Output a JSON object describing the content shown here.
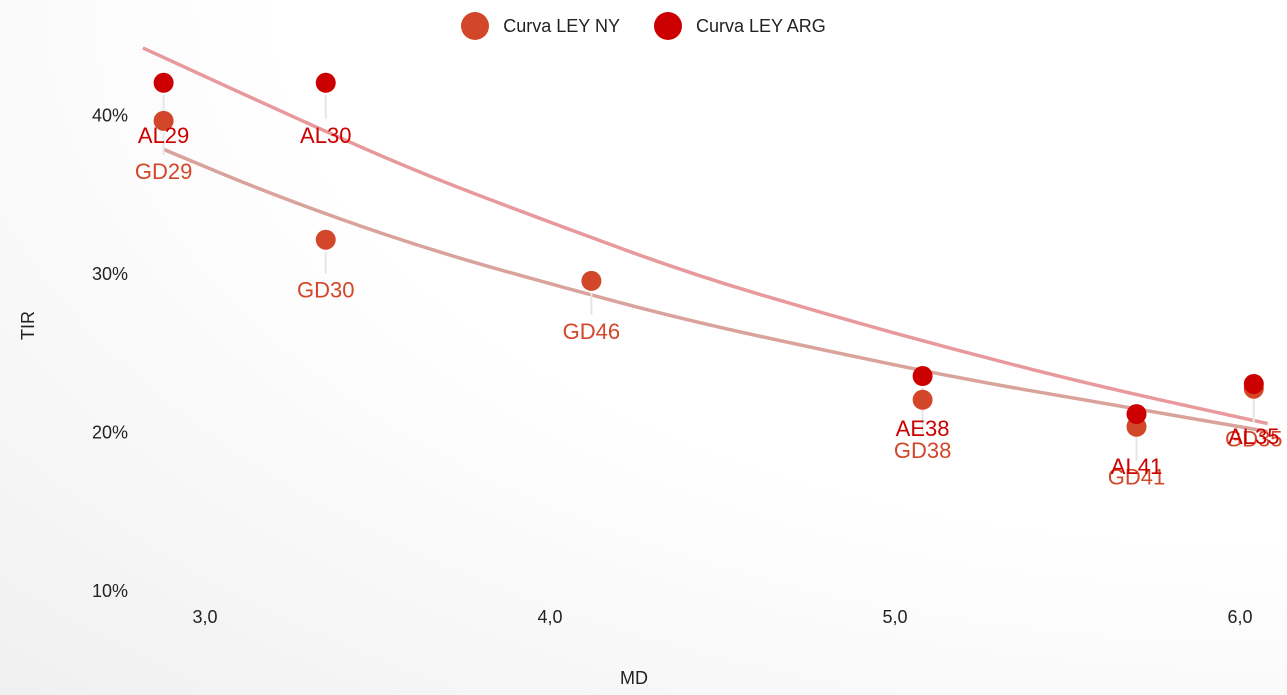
{
  "chart_data": {
    "type": "scatter",
    "xlabel": "MD",
    "ylabel": "TIR",
    "xlim": [
      2.85,
      6.1
    ],
    "ylim": [
      10,
      45
    ],
    "xticks": [
      {
        "value": 3.0,
        "label": "3,0"
      },
      {
        "value": 4.0,
        "label": "4,0"
      },
      {
        "value": 5.0,
        "label": "5,0"
      },
      {
        "value": 6.0,
        "label": "6,0"
      }
    ],
    "yticks": [
      {
        "value": 10,
        "label": "10%"
      },
      {
        "value": 20,
        "label": "20%"
      },
      {
        "value": 30,
        "label": "30%"
      },
      {
        "value": 40,
        "label": "40%"
      }
    ],
    "legend_position": "top-center",
    "series": [
      {
        "name": "Curva LEY NY",
        "color": "#d2472a",
        "trend_color": "#d9a39b",
        "points": [
          {
            "label": "GD29",
            "x": 2.88,
            "y": 39.6
          },
          {
            "label": "GD30",
            "x": 3.35,
            "y": 32.1
          },
          {
            "label": "GD46",
            "x": 4.12,
            "y": 29.5
          },
          {
            "label": "GD38",
            "x": 5.08,
            "y": 22.0
          },
          {
            "label": "GD41",
            "x": 5.7,
            "y": 20.3
          },
          {
            "label": "GD35",
            "x": 6.04,
            "y": 22.7
          }
        ],
        "trend": [
          [
            2.88,
            37.8
          ],
          [
            3.2,
            34.9
          ],
          [
            3.6,
            31.8
          ],
          [
            4.0,
            29.3
          ],
          [
            4.4,
            27.0
          ],
          [
            4.8,
            25.1
          ],
          [
            5.2,
            23.3
          ],
          [
            5.6,
            21.8
          ],
          [
            6.08,
            20.0
          ]
        ]
      },
      {
        "name": "Curva LEY ARG",
        "color": "#cc0000",
        "trend_color": "#e8999b",
        "points": [
          {
            "label": "AL29",
            "x": 2.88,
            "y": 42.0
          },
          {
            "label": "AL30",
            "x": 3.35,
            "y": 42.0
          },
          {
            "label": "AE38",
            "x": 5.08,
            "y": 23.5
          },
          {
            "label": "AL41",
            "x": 5.7,
            "y": 21.1
          },
          {
            "label": "AL35",
            "x": 6.04,
            "y": 23.0
          }
        ],
        "trend": [
          [
            2.82,
            44.2
          ],
          [
            3.2,
            40.4
          ],
          [
            3.6,
            36.5
          ],
          [
            4.0,
            33.2
          ],
          [
            4.4,
            30.0
          ],
          [
            4.8,
            27.4
          ],
          [
            5.2,
            25.0
          ],
          [
            5.6,
            22.8
          ],
          [
            6.08,
            20.5
          ]
        ]
      }
    ]
  }
}
